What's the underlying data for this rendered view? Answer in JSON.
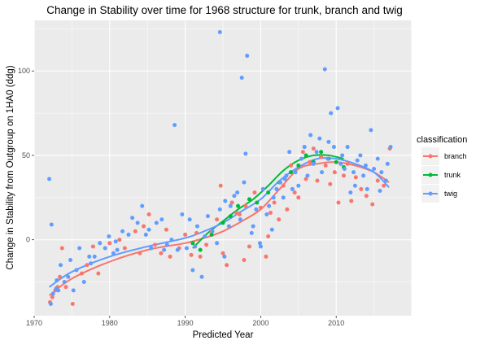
{
  "chart_data": {
    "type": "scatter",
    "title": "Change in Stability over time for 1968 structure for trunk, branch and twig",
    "xlabel": "Predicted Year",
    "ylabel": "Change in Stability from Outgroup on 1HA0 (ddg)",
    "xlim": [
      1970,
      2020
    ],
    "ylim": [
      -45,
      130
    ],
    "xticks": [
      1970,
      1980,
      1990,
      2000,
      2010
    ],
    "yticks": [
      0,
      50,
      100
    ],
    "grid": true,
    "legend": {
      "title": "classification",
      "position": "right"
    },
    "series": [
      {
        "name": "branch",
        "color": "#f8766d",
        "points": [
          [
            1972.1,
            -37
          ],
          [
            1972.4,
            -34
          ],
          [
            1972.8,
            -30
          ],
          [
            1973.1,
            -28
          ],
          [
            1973.4,
            -22
          ],
          [
            1973.7,
            -5
          ],
          [
            1974.2,
            -28
          ],
          [
            1975.1,
            -38
          ],
          [
            1976.3,
            -20
          ],
          [
            1977.0,
            -15
          ],
          [
            1977.8,
            -4
          ],
          [
            1978.5,
            -20
          ],
          [
            1980.0,
            -2
          ],
          [
            1981.3,
            0
          ],
          [
            1982.0,
            -5
          ],
          [
            1983.4,
            5
          ],
          [
            1984.5,
            8
          ],
          [
            1985.2,
            15
          ],
          [
            1986.0,
            -3
          ],
          [
            1986.8,
            -8
          ],
          [
            1987.5,
            6
          ],
          [
            1988.0,
            -10
          ],
          [
            1989.2,
            -5
          ],
          [
            1990.0,
            3
          ],
          [
            1990.8,
            -9
          ],
          [
            1991.5,
            4
          ],
          [
            1992.0,
            -10
          ],
          [
            1992.8,
            -3
          ],
          [
            1993.5,
            5
          ],
          [
            1994.2,
            12
          ],
          [
            1994.7,
            32
          ],
          [
            1995.0,
            -8
          ],
          [
            1995.5,
            -15
          ],
          [
            1996.2,
            22
          ],
          [
            1996.8,
            16
          ],
          [
            1997.2,
            15
          ],
          [
            1998.0,
            20
          ],
          [
            1998.5,
            -4
          ],
          [
            1999.2,
            28
          ],
          [
            2000.0,
            19
          ],
          [
            2000.7,
            -10
          ],
          [
            2001.3,
            16
          ],
          [
            2001.8,
            22
          ],
          [
            2002.4,
            12
          ],
          [
            2003.0,
            32
          ],
          [
            2003.5,
            18
          ],
          [
            2004.0,
            44
          ],
          [
            2004.5,
            28
          ],
          [
            2005.0,
            25
          ],
          [
            2005.6,
            52
          ],
          [
            2006.0,
            36
          ],
          [
            2006.5,
            46
          ],
          [
            2007.0,
            54
          ],
          [
            2007.5,
            35
          ],
          [
            2008.0,
            49
          ],
          [
            2008.6,
            44
          ],
          [
            2009.2,
            33
          ],
          [
            2009.8,
            40
          ],
          [
            2010.3,
            22
          ],
          [
            2011.0,
            38
          ],
          [
            2011.5,
            45
          ],
          [
            2012.0,
            23
          ],
          [
            2012.6,
            37
          ],
          [
            2013.3,
            30
          ],
          [
            2014.0,
            26
          ],
          [
            2014.8,
            21
          ],
          [
            2015.5,
            35
          ],
          [
            2016.3,
            32
          ],
          [
            2017.1,
            54
          ],
          [
            2001.0,
            2
          ],
          [
            1997.8,
            -12
          ],
          [
            1984.0,
            -8
          ]
        ]
      },
      {
        "name": "trunk",
        "color": "#00ba38",
        "points": [
          [
            1991.0,
            -2
          ],
          [
            1992.0,
            -6
          ],
          [
            1993.5,
            3
          ],
          [
            1995.0,
            10
          ],
          [
            1996.0,
            14
          ],
          [
            1997.0,
            20
          ],
          [
            1998.5,
            24
          ],
          [
            1999.5,
            22
          ],
          [
            2001.0,
            28
          ],
          [
            2002.5,
            34
          ],
          [
            2004.0,
            40
          ],
          [
            2005.0,
            44
          ],
          [
            2006.0,
            50
          ],
          [
            2007.0,
            46
          ],
          [
            2008.0,
            52
          ],
          [
            2009.0,
            48
          ],
          [
            2010.0,
            46
          ],
          [
            2011.0,
            43
          ]
        ]
      },
      {
        "name": "twig",
        "color": "#619cff",
        "points": [
          [
            1972.0,
            36
          ],
          [
            1972.3,
            9
          ],
          [
            1972.2,
            -38
          ],
          [
            1972.5,
            -32
          ],
          [
            1972.9,
            -29
          ],
          [
            1973.2,
            -30
          ],
          [
            1973.5,
            -15
          ],
          [
            1974.0,
            -25
          ],
          [
            1974.5,
            -22
          ],
          [
            1975.2,
            -30
          ],
          [
            1975.6,
            -18
          ],
          [
            1976.0,
            -5
          ],
          [
            1976.6,
            -25
          ],
          [
            1977.3,
            -10
          ],
          [
            1978.0,
            -10
          ],
          [
            1978.7,
            -2
          ],
          [
            1979.4,
            -5
          ],
          [
            1979.9,
            2
          ],
          [
            1980.5,
            -8
          ],
          [
            1981.0,
            -6
          ],
          [
            1981.7,
            5
          ],
          [
            1982.5,
            3
          ],
          [
            1983.0,
            13
          ],
          [
            1983.7,
            10
          ],
          [
            1984.3,
            20
          ],
          [
            1984.8,
            3
          ],
          [
            1985.5,
            -5
          ],
          [
            1986.2,
            10
          ],
          [
            1986.9,
            12
          ],
          [
            1987.6,
            -3
          ],
          [
            1988.2,
            0
          ],
          [
            1988.6,
            68
          ],
          [
            1989.0,
            -6
          ],
          [
            1989.6,
            15
          ],
          [
            1990.2,
            -5
          ],
          [
            1990.6,
            12
          ],
          [
            1991.0,
            -18
          ],
          [
            1991.6,
            8
          ],
          [
            1992.2,
            -22
          ],
          [
            1992.6,
            2
          ],
          [
            1993.0,
            14
          ],
          [
            1993.6,
            5
          ],
          [
            1994.2,
            -2
          ],
          [
            1994.6,
            18
          ],
          [
            1995.3,
            23
          ],
          [
            1995.8,
            8
          ],
          [
            1996.0,
            20
          ],
          [
            1996.5,
            26
          ],
          [
            1996.9,
            28
          ],
          [
            1997.3,
            12
          ],
          [
            1997.8,
            34
          ],
          [
            1998.2,
            109
          ],
          [
            1998.8,
            4
          ],
          [
            1999.4,
            18
          ],
          [
            1999.9,
            -2
          ],
          [
            2000.3,
            30
          ],
          [
            2000.8,
            15
          ],
          [
            2001.1,
            20
          ],
          [
            2001.7,
            25
          ],
          [
            2002.1,
            30
          ],
          [
            2002.6,
            34
          ],
          [
            2003.0,
            25
          ],
          [
            2003.4,
            38
          ],
          [
            2003.8,
            52
          ],
          [
            2004.2,
            30
          ],
          [
            2004.6,
            40
          ],
          [
            2005.0,
            32
          ],
          [
            2005.4,
            48
          ],
          [
            2005.8,
            55
          ],
          [
            2006.2,
            38
          ],
          [
            2006.6,
            62
          ],
          [
            2007.0,
            45
          ],
          [
            2007.4,
            52
          ],
          [
            2007.8,
            60
          ],
          [
            2008.1,
            40
          ],
          [
            2008.5,
            101
          ],
          [
            2008.9,
            48
          ],
          [
            2009.3,
            75
          ],
          [
            2009.7,
            55
          ],
          [
            2010.2,
            78
          ],
          [
            2010.6,
            45
          ],
          [
            2011.1,
            42
          ],
          [
            2011.5,
            55
          ],
          [
            2011.9,
            28
          ],
          [
            2012.3,
            40
          ],
          [
            2012.8,
            47
          ],
          [
            2013.2,
            50
          ],
          [
            2013.6,
            38
          ],
          [
            2014.1,
            30
          ],
          [
            2014.6,
            65
          ],
          [
            2015.0,
            42
          ],
          [
            2015.5,
            48
          ],
          [
            2016.0,
            40
          ],
          [
            2016.6,
            35
          ],
          [
            2017.2,
            55
          ],
          [
            1994.6,
            123
          ],
          [
            1997.5,
            96
          ],
          [
            1998.0,
            51
          ],
          [
            2003.2,
            36
          ],
          [
            1987.2,
            -6
          ],
          [
            1985.2,
            6
          ],
          [
            1980.8,
            -1
          ],
          [
            1977.5,
            -14
          ],
          [
            1974.8,
            -12
          ],
          [
            1973.0,
            -24
          ],
          [
            2001.5,
            6
          ],
          [
            2000.0,
            -4
          ],
          [
            1999.0,
            8
          ],
          [
            1995.2,
            -10
          ],
          [
            1991.3,
            -4
          ],
          [
            2009.0,
            58
          ],
          [
            2010.8,
            50
          ],
          [
            2012.5,
            32
          ],
          [
            2013.9,
            44
          ],
          [
            2015.8,
            29
          ],
          [
            2016.8,
            45
          ]
        ]
      }
    ],
    "trendlines": [
      {
        "name": "branch",
        "color": "#f8766d",
        "x": [
          1972,
          1975,
          1980,
          1985,
          1990,
          1992.5,
          1995,
          1997.5,
          2000,
          2002.5,
          2005,
          2007.5,
          2010,
          2012.5,
          2015,
          2017
        ],
        "y": [
          -33,
          -23,
          -13,
          -6,
          -2,
          1,
          5,
          11,
          18,
          30,
          42,
          45,
          46,
          44,
          40,
          34
        ]
      },
      {
        "name": "trunk",
        "color": "#00ba38",
        "x": [
          1991,
          1993,
          1995,
          1997,
          1999,
          2001,
          2003,
          2005,
          2007,
          2009,
          2011
        ],
        "y": [
          -5,
          4,
          11,
          18,
          24,
          32,
          41,
          47,
          50,
          50,
          48
        ]
      },
      {
        "name": "twig",
        "color": "#619cff",
        "x": [
          1972,
          1975,
          1980,
          1985,
          1990,
          1992.5,
          1995,
          1997.5,
          2000,
          2002.5,
          2005,
          2007.5,
          2010,
          2012.5,
          2015,
          2017
        ],
        "y": [
          -28,
          -19,
          -10,
          -4,
          1,
          5,
          10,
          17,
          24,
          35,
          43,
          48,
          48,
          45,
          40,
          31
        ]
      }
    ]
  }
}
